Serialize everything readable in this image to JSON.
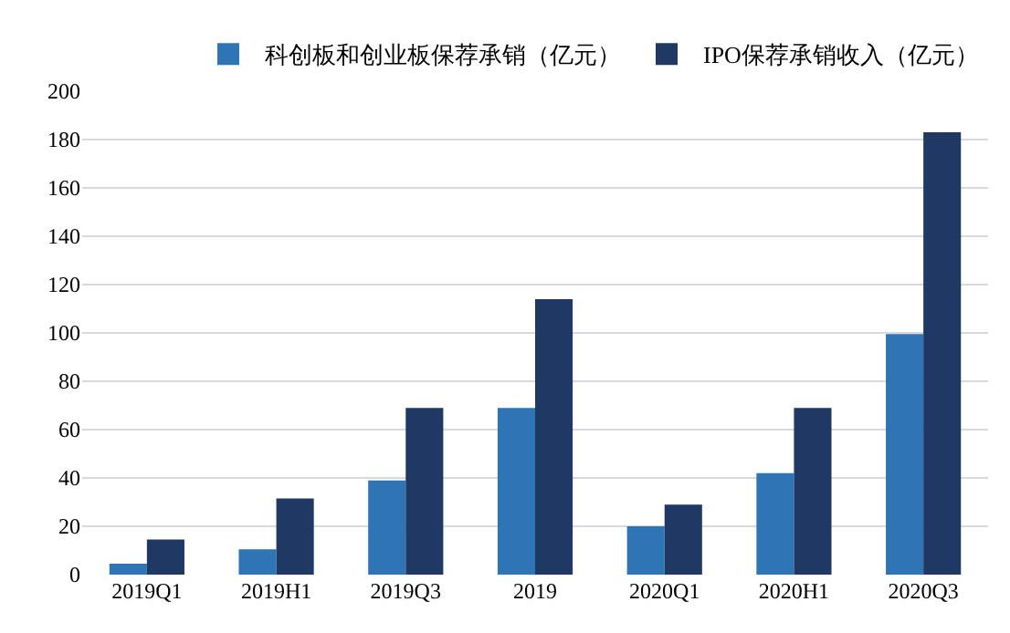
{
  "chart_data": {
    "type": "bar",
    "categories": [
      "2019Q1",
      "2019H1",
      "2019Q3",
      "2019",
      "2020Q1",
      "2020H1",
      "2020Q3"
    ],
    "series": [
      {
        "name": "科创板和创业板保荐承销（亿元）",
        "color": "#2e75b6",
        "values": [
          4.5,
          10.5,
          39,
          69,
          20,
          42,
          99.5
        ]
      },
      {
        "name": "IPO保荐承销收入（亿元）",
        "color": "#203864",
        "values": [
          14.5,
          31.5,
          69,
          114,
          29,
          69,
          183
        ]
      }
    ],
    "ylim": [
      0,
      200
    ],
    "yticks": [
      0,
      20,
      40,
      60,
      80,
      100,
      120,
      140,
      160,
      180,
      200
    ],
    "grid": "y",
    "legend": "top right"
  }
}
